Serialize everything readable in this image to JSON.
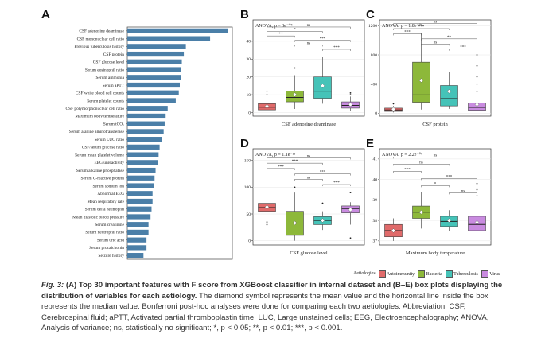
{
  "colors": {
    "bar": "#4b7fa8",
    "Autoimmunity": "#e06a6a",
    "Bacteria": "#8db83a",
    "Tuberculosis": "#45c3b8",
    "Virus": "#c98be0"
  },
  "groups": [
    "Autoimmunity",
    "Bacteria",
    "Tuberculosis",
    "Virus"
  ],
  "legend_title": "Aetiologies",
  "chart_data": [
    {
      "panel": "A",
      "type": "bar",
      "orientation": "horizontal",
      "categories": [
        "CSF adenosine deaminase",
        "CSF mononuclear cell ratio",
        "Previous tuberculosis history",
        "CSF protein",
        "CSF glucose level",
        "Serum eosinophil ratio",
        "Serum ammonia",
        "Serum aPTT",
        "CSF white blood cell counts",
        "Serum platelet counts",
        "CSF polymorphonuclear cell ratio",
        "Maximum body temperature",
        "Serum tCO₂",
        "Serum alanine aminotransferase",
        "Serum LUC ratio",
        "CSF/serum glucose ratio",
        "Serum mean platelet volume",
        "EEG unreactivity",
        "Serum alkaline phosphatase",
        "Serum C-reactive protein",
        "Serum sodium ion",
        "Abnormal EEG",
        "Mean respiratory rate",
        "Serum delta neutrophil",
        "Mean diastolic blood pressure",
        "Serum creatinine",
        "Serum neutrophil ratio",
        "Serum uric acid",
        "Serum procalcitonin",
        "Seizure history"
      ],
      "values": [
        50,
        41,
        29,
        28,
        27,
        26.5,
        26.5,
        26,
        25.5,
        24,
        20,
        19,
        18.5,
        18,
        17,
        16,
        15.5,
        15,
        14,
        13.5,
        13,
        12.5,
        12.5,
        12,
        11.5,
        10.5,
        10.5,
        9.5,
        9.5,
        8
      ],
      "xlim": [
        0,
        52
      ]
    },
    {
      "panel": "B",
      "type": "box",
      "xlabel": "CSF adenosine deaminase",
      "anova": "ANOVA, p = 3e⁻⁰⁴",
      "ylim": [
        -2,
        52
      ],
      "yticks": [
        0,
        10,
        20,
        30,
        40
      ],
      "boxes": [
        {
          "min": 0,
          "q1": 1.5,
          "median": 3,
          "q3": 5,
          "max": 8,
          "mean": 3.5,
          "outliers": [
            10,
            12
          ]
        },
        {
          "min": 2,
          "q1": 6,
          "median": 8.5,
          "q3": 12,
          "max": 21,
          "mean": 10,
          "outliers": [
            25
          ]
        },
        {
          "min": 5,
          "q1": 8,
          "median": 12,
          "q3": 20,
          "max": 31,
          "mean": 15,
          "outliers": []
        },
        {
          "min": 1,
          "q1": 2.5,
          "median": 4,
          "q3": 6,
          "max": 9,
          "mean": 4.5,
          "outliers": [
            10,
            11
          ]
        }
      ],
      "comparisons": [
        {
          "a": 0,
          "b": 3,
          "label": "ns",
          "y": 48
        },
        {
          "a": 0,
          "b": 2,
          "label": "*",
          "y": 45.5
        },
        {
          "a": 0,
          "b": 1,
          "label": "**",
          "y": 43
        },
        {
          "a": 1,
          "b": 3,
          "label": "***",
          "y": 40.5
        },
        {
          "a": 1,
          "b": 2,
          "label": "ns",
          "y": 38
        },
        {
          "a": 2,
          "b": 3,
          "label": "***",
          "y": 35.5
        }
      ]
    },
    {
      "panel": "C",
      "type": "box",
      "xlabel": "CSF protein",
      "anova": "ANOVA, p = 1.8e⁻⁰⁹",
      "ylim": [
        -40,
        1280
      ],
      "yticks": [
        0,
        400,
        800,
        1200
      ],
      "boxes": [
        {
          "min": 10,
          "q1": 25,
          "median": 45,
          "q3": 70,
          "max": 100,
          "mean": 55,
          "outliers": [
            130
          ]
        },
        {
          "min": 50,
          "q1": 150,
          "median": 250,
          "q3": 700,
          "max": 1100,
          "mean": 450,
          "outliers": []
        },
        {
          "min": 60,
          "q1": 100,
          "median": 200,
          "q3": 380,
          "max": 560,
          "mean": 300,
          "outliers": []
        },
        {
          "min": 10,
          "q1": 40,
          "median": 80,
          "q3": 140,
          "max": 260,
          "mean": 120,
          "outliers": [
            300,
            400,
            500,
            650,
            800
          ]
        }
      ],
      "comparisons": [
        {
          "a": 0,
          "b": 3,
          "label": "ns",
          "y": 1230
        },
        {
          "a": 0,
          "b": 2,
          "label": "***",
          "y": 1160
        },
        {
          "a": 0,
          "b": 1,
          "label": "***",
          "y": 1090
        },
        {
          "a": 1,
          "b": 3,
          "label": "**",
          "y": 1020
        },
        {
          "a": 1,
          "b": 2,
          "label": "ns",
          "y": 950
        },
        {
          "a": 2,
          "b": 3,
          "label": "***",
          "y": 880
        }
      ]
    },
    {
      "panel": "D",
      "type": "box",
      "xlabel": "CSF glucose level",
      "anova": "ANOVA, p = 1.1e⁻¹³",
      "ylim": [
        -8,
        172
      ],
      "yticks": [
        0,
        50,
        100,
        150
      ],
      "boxes": [
        {
          "min": 40,
          "q1": 55,
          "median": 62,
          "q3": 70,
          "max": 80,
          "mean": 63,
          "outliers": [
            35,
            30
          ]
        },
        {
          "min": 0,
          "q1": 10,
          "median": 18,
          "q3": 55,
          "max": 90,
          "mean": 33,
          "outliers": [
            100
          ]
        },
        {
          "min": 20,
          "q1": 30,
          "median": 38,
          "q3": 45,
          "max": 55,
          "mean": 38,
          "outliers": [
            70
          ]
        },
        {
          "min": 30,
          "q1": 52,
          "median": 60,
          "q3": 65,
          "max": 72,
          "mean": 58,
          "outliers": [
            90,
            5
          ]
        }
      ],
      "comparisons": [
        {
          "a": 0,
          "b": 3,
          "label": "ns",
          "y": 155
        },
        {
          "a": 0,
          "b": 2,
          "label": "***",
          "y": 145
        },
        {
          "a": 0,
          "b": 1,
          "label": "***",
          "y": 135
        },
        {
          "a": 1,
          "b": 3,
          "label": "***",
          "y": 125
        },
        {
          "a": 1,
          "b": 2,
          "label": "ns",
          "y": 115
        },
        {
          "a": 2,
          "b": 3,
          "label": "***",
          "y": 105
        }
      ]
    },
    {
      "panel": "E",
      "type": "box",
      "xlabel": "Maximum body temperature",
      "anova": "ANOVA, p = 2.2e⁻⁰⁶",
      "ylim": [
        36.8,
        41.5
      ],
      "yticks": [
        37,
        38,
        39,
        40,
        41
      ],
      "boxes": [
        {
          "min": 37,
          "q1": 37.2,
          "median": 37.5,
          "q3": 37.8,
          "max": 38.1,
          "mean": 37.5,
          "outliers": []
        },
        {
          "min": 37.6,
          "q1": 38.1,
          "median": 38.4,
          "q3": 38.7,
          "max": 39.4,
          "mean": 38.4,
          "outliers": []
        },
        {
          "min": 37.5,
          "q1": 37.7,
          "median": 37.95,
          "q3": 38.2,
          "max": 38.5,
          "mean": 38,
          "outliers": []
        },
        {
          "min": 37,
          "q1": 37.5,
          "median": 37.8,
          "q3": 38.2,
          "max": 38.6,
          "mean": 37.9,
          "outliers": [
            39.2,
            39.5,
            39.8
          ]
        }
      ],
      "comparisons": [
        {
          "a": 0,
          "b": 3,
          "label": "ns",
          "y": 41.1
        },
        {
          "a": 0,
          "b": 2,
          "label": "ns",
          "y": 40.75
        },
        {
          "a": 0,
          "b": 1,
          "label": "***",
          "y": 40.4
        },
        {
          "a": 1,
          "b": 3,
          "label": "***",
          "y": 40.05
        },
        {
          "a": 1,
          "b": 2,
          "label": "*",
          "y": 39.7
        },
        {
          "a": 2,
          "b": 3,
          "label": "ns",
          "y": 39.35
        }
      ]
    }
  ],
  "caption": {
    "fig": "Fig. 3:",
    "lead": " (A) Top 30 important features with F score from XGBoost classifier in internal dataset and (B–E) box plots displaying the distribution of variables for each aetiology.",
    "body": " The diamond symbol represents the mean value and the horizontal line inside the box represents the median value. Bonferroni post-hoc analyses were done for comparing each two aetiologies. Abbreviation: CSF, Cerebrospinal fluid; aPTT, Activated partial thromboplastin time; LUC, Large unstained cells; EEG, Electroencephalography; ANOVA, Analysis of variance; ns, statistically no significant; *, p < 0.05; **, p < 0.01; ***, p < 0.001."
  }
}
